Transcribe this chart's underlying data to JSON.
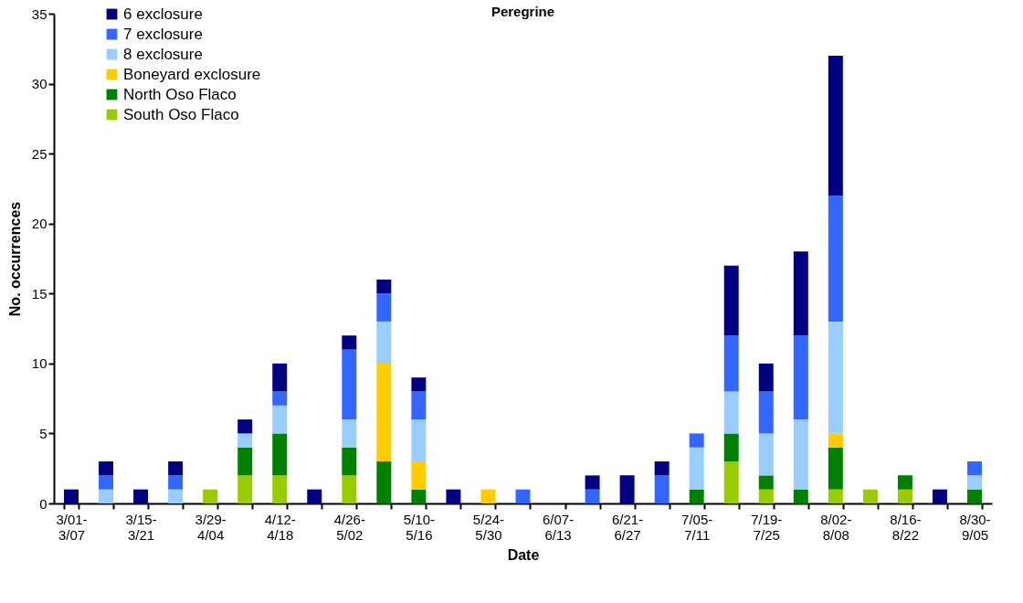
{
  "chart_data": {
    "type": "bar",
    "title": "Peregrine",
    "xlabel": "Date",
    "ylabel": "No. occurrences",
    "categories": [
      "3/01-3/07",
      null,
      "3/15-3/21",
      null,
      "3/29-4/04",
      null,
      "4/12-4/18",
      null,
      "4/26-5/02",
      null,
      "5/10-5/16",
      null,
      "5/24-5/30",
      null,
      "6/07-6/13",
      null,
      "6/21-6/27",
      null,
      "7/05-7/11",
      null,
      "7/19-7/25",
      null,
      "8/02-8/08",
      null,
      "8/16-8/22",
      null,
      "8/30-9/05"
    ],
    "stacked": true,
    "ylim": [
      0,
      35
    ],
    "yticks": [
      0,
      5,
      10,
      15,
      20,
      25,
      30,
      35
    ],
    "grid": false,
    "legend": "top left",
    "series": [
      {
        "name": "South Oso Flaco",
        "color": "#99cc00",
        "values": [
          0,
          0,
          0,
          0,
          1,
          2,
          2,
          0,
          2,
          0,
          0,
          0,
          0,
          0,
          0,
          0,
          0,
          0,
          0,
          3,
          1,
          0,
          1,
          1,
          1,
          0,
          0
        ]
      },
      {
        "name": "North Oso Flaco",
        "color": "#008000",
        "values": [
          0,
          0,
          0,
          0,
          0,
          2,
          3,
          0,
          2,
          3,
          1,
          0,
          0,
          0,
          0,
          0,
          0,
          0,
          1,
          2,
          1,
          1,
          3,
          0,
          1,
          0,
          1
        ]
      },
      {
        "name": "Boneyard exclosure",
        "color": "#ffcc00",
        "values": [
          0,
          0,
          0,
          0,
          0,
          0,
          0,
          0,
          0,
          7,
          2,
          0,
          1,
          0,
          0,
          0,
          0,
          0,
          0,
          0,
          0,
          0,
          1,
          0,
          0,
          0,
          0
        ]
      },
      {
        "name": "8 exclosure",
        "color": "#99ccff",
        "values": [
          0,
          1,
          0,
          1,
          0,
          1,
          2,
          0,
          2,
          3,
          3,
          0,
          0,
          0,
          0,
          0,
          0,
          0,
          3,
          3,
          3,
          5,
          8,
          0,
          0,
          0,
          1
        ]
      },
      {
        "name": "7 exclosure",
        "color": "#3366ff",
        "values": [
          0,
          1,
          0,
          1,
          0,
          0,
          1,
          0,
          5,
          2,
          2,
          0,
          0,
          1,
          0,
          1,
          0,
          2,
          1,
          4,
          3,
          6,
          9,
          0,
          0,
          0,
          1
        ]
      },
      {
        "name": "6 exclosure",
        "color": "#000080",
        "values": [
          1,
          1,
          1,
          1,
          0,
          1,
          2,
          1,
          1,
          1,
          1,
          1,
          0,
          0,
          0,
          1,
          2,
          1,
          0,
          5,
          2,
          6,
          10,
          0,
          0,
          1,
          0
        ]
      }
    ]
  }
}
